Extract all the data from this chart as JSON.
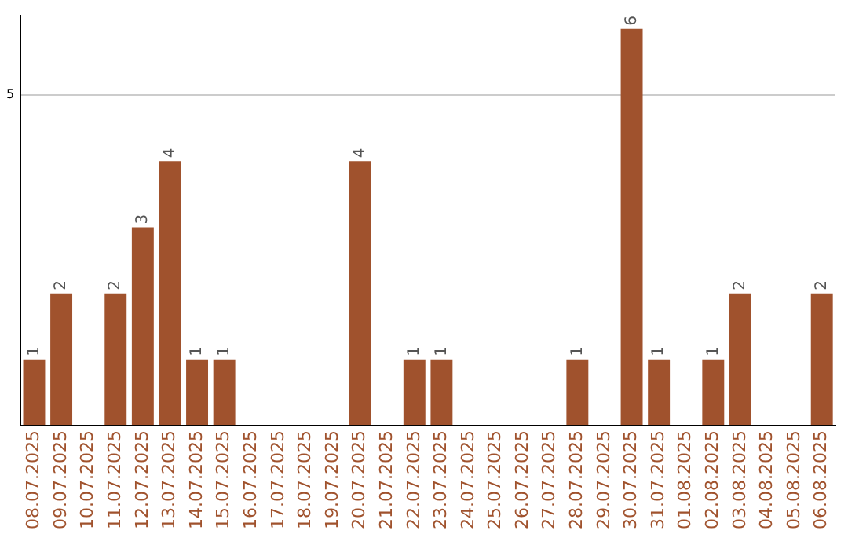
{
  "chart_data": {
    "type": "bar",
    "categories": [
      "08.07.2025",
      "09.07.2025",
      "10.07.2025",
      "11.07.2025",
      "12.07.2025",
      "13.07.2025",
      "14.07.2025",
      "15.07.2025",
      "16.07.2025",
      "17.07.2025",
      "18.07.2025",
      "19.07.2025",
      "20.07.2025",
      "21.07.2025",
      "22.07.2025",
      "23.07.2025",
      "24.07.2025",
      "25.07.2025",
      "26.07.2025",
      "27.07.2025",
      "28.07.2025",
      "29.07.2025",
      "30.07.2025",
      "31.07.2025",
      "01.08.2025",
      "02.08.2025",
      "03.08.2025",
      "04.08.2025",
      "05.08.2025",
      "06.08.2025"
    ],
    "values": [
      1,
      2,
      0,
      2,
      3,
      4,
      1,
      1,
      0,
      0,
      0,
      0,
      4,
      0,
      1,
      1,
      0,
      0,
      0,
      0,
      1,
      0,
      6,
      1,
      0,
      1,
      2,
      0,
      0,
      2
    ],
    "value_labels": [
      "1",
      "2",
      null,
      "2",
      "3",
      "4",
      "1",
      "1",
      null,
      null,
      null,
      null,
      "4",
      null,
      "1",
      "1",
      null,
      null,
      null,
      null,
      "1",
      null,
      "6",
      "1",
      null,
      "1",
      "2",
      null,
      null,
      "2"
    ],
    "color": "#a0522d",
    "ylim": [
      0,
      6.2
    ],
    "yticks": [
      {
        "value": 0,
        "label": null
      },
      5
    ],
    "grid": "y"
  }
}
